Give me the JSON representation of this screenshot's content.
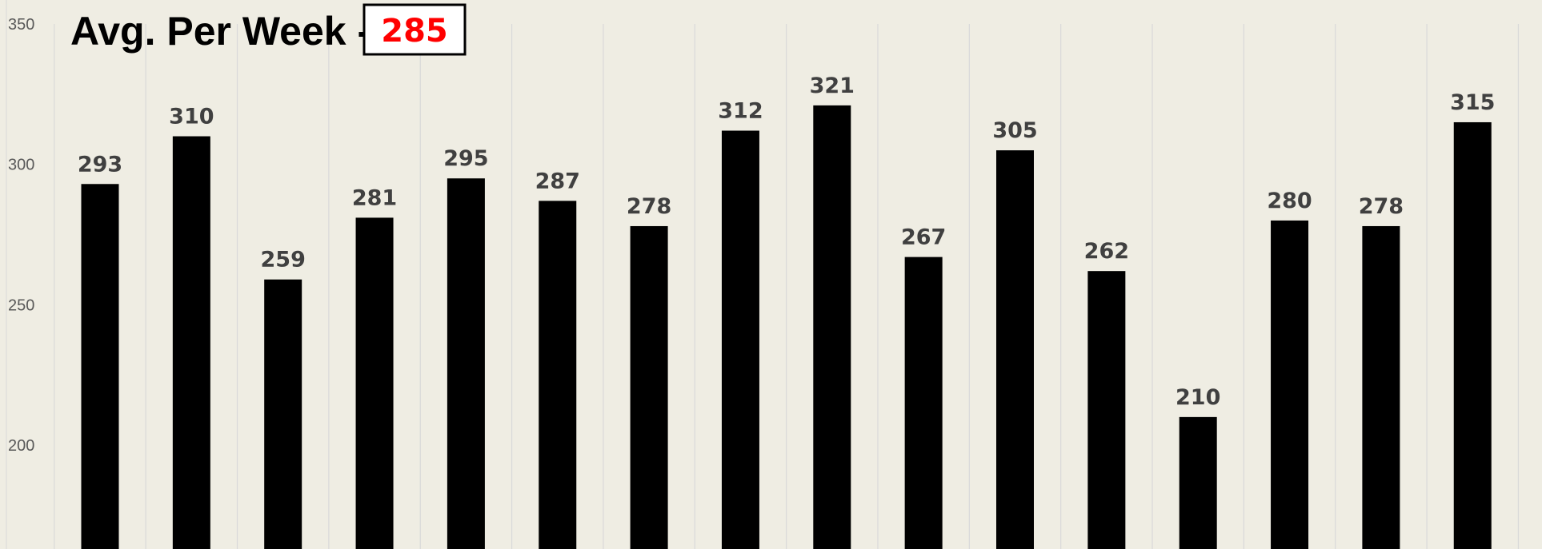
{
  "title": {
    "label": "Avg. Per Week -",
    "value": "285",
    "value_color": "#ff0000"
  },
  "chart_data": {
    "type": "bar",
    "values": [
      293,
      310,
      259,
      281,
      295,
      287,
      278,
      312,
      321,
      267,
      305,
      262,
      210,
      280,
      278,
      315
    ],
    "ylim": [
      163,
      350
    ],
    "yticks": [
      200,
      250,
      300,
      350
    ],
    "grid": "vertical",
    "bar_color": "#000000",
    "background_color": "#efede3"
  }
}
